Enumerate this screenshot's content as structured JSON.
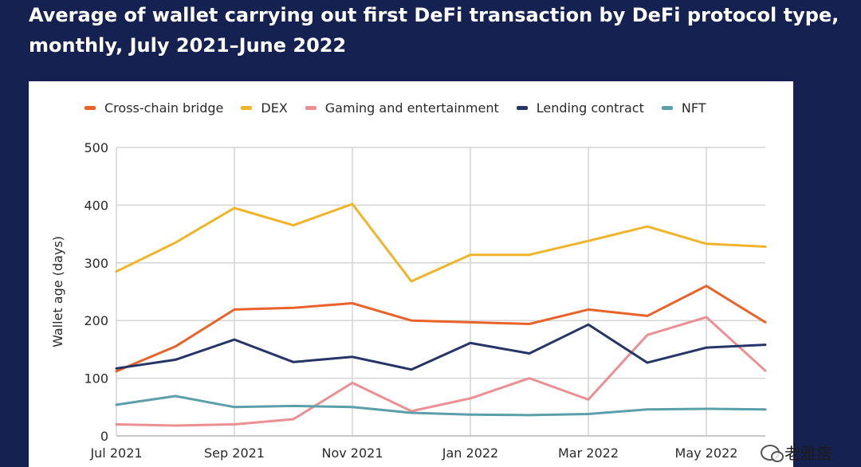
{
  "chart_data": {
    "type": "line",
    "title": "Average of wallet carrying out first DeFi transaction by DeFi protocol type, monthly, July 2021–June 2022",
    "ylabel": "Wallet age (days)",
    "xlabel": "",
    "ylim": [
      0,
      500
    ],
    "yticks": [
      0,
      100,
      200,
      300,
      400,
      500
    ],
    "grid": true,
    "legend_position": "top",
    "categories": [
      "Jul 2021",
      "Aug 2021",
      "Sep 2021",
      "Oct 2021",
      "Nov 2021",
      "Dec 2021",
      "Jan 2022",
      "Feb 2022",
      "Mar 2022",
      "Apr 2022",
      "May 2022",
      "Jun 2022"
    ],
    "xtick_labels": [
      "Jul 2021",
      "Sep 2021",
      "Nov 2021",
      "Jan 2022",
      "Mar 2022",
      "May 2022"
    ],
    "series": [
      {
        "name": "Cross-chain bridge",
        "color": "#e8622a",
        "values": [
          112,
          155,
          219,
          222,
          230,
          200,
          197,
          194,
          219,
          208,
          260,
          197
        ]
      },
      {
        "name": "DEX",
        "color": "#f0b429",
        "values": [
          285,
          335,
          395,
          365,
          402,
          268,
          314,
          314,
          338,
          363,
          333,
          328
        ]
      },
      {
        "name": "Gaming and entertainment",
        "color": "#ec8f92",
        "values": [
          20,
          18,
          20,
          29,
          92,
          43,
          65,
          100,
          63,
          175,
          206,
          113
        ]
      },
      {
        "name": "Lending contract",
        "color": "#263567",
        "values": [
          117,
          132,
          167,
          128,
          137,
          115,
          161,
          143,
          193,
          127,
          153,
          158
        ]
      },
      {
        "name": "NFT",
        "color": "#5b9faa",
        "values": [
          54,
          69,
          50,
          52,
          50,
          40,
          37,
          36,
          38,
          46,
          47,
          46
        ]
      }
    ]
  },
  "watermark": {
    "text": "老雅痞",
    "icon": "wechat-icon"
  }
}
